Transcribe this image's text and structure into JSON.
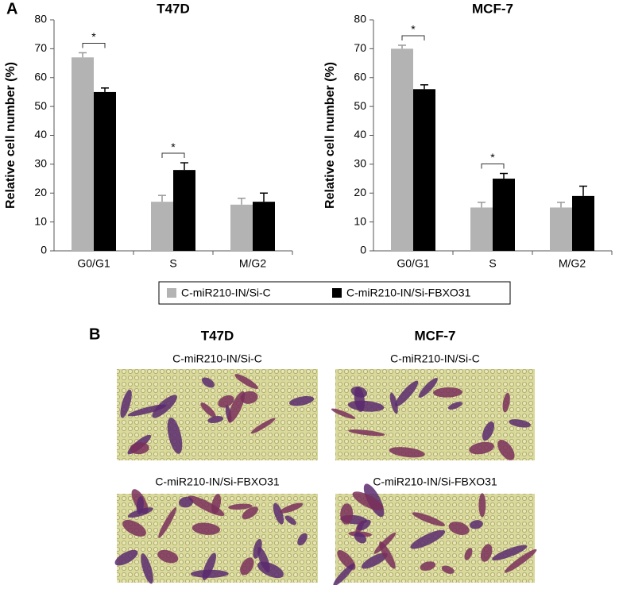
{
  "panel_labels": [
    "A",
    "B"
  ],
  "chart_data": [
    {
      "type": "bar",
      "title": "T47D",
      "y_label": "Relative cell number (%)",
      "categories": [
        "G0/G1",
        "S",
        "M/G2"
      ],
      "series": [
        {
          "name": "C-miR210-IN/Si-C",
          "color": "#b3b3b3",
          "values": [
            67,
            17,
            16
          ],
          "errors": [
            1.6,
            2.2,
            2.2
          ]
        },
        {
          "name": "C-miR210-IN/Si-FBXO31",
          "color": "#000000",
          "values": [
            55,
            28,
            17
          ],
          "errors": [
            1.4,
            2.5,
            3
          ]
        }
      ],
      "ylim": [
        0,
        80
      ],
      "yticks": [
        0,
        10,
        20,
        30,
        40,
        50,
        60,
        70,
        80
      ],
      "annotations": [
        {
          "category": "G0/G1",
          "text": "*"
        },
        {
          "category": "S",
          "text": "*"
        }
      ]
    },
    {
      "type": "bar",
      "title": "MCF-7",
      "y_label": "Relative cell number (%)",
      "categories": [
        "G0/G1",
        "S",
        "M/G2"
      ],
      "series": [
        {
          "color": "#b3b3b3",
          "values": [
            70,
            15,
            15
          ],
          "errors": [
            1.2,
            1.8,
            1.8
          ]
        },
        {
          "color": "#000000",
          "values": [
            56,
            25,
            19
          ],
          "errors": [
            1.5,
            1.8,
            3.4
          ]
        }
      ],
      "ylim": [
        0,
        80
      ],
      "yticks": [
        0,
        10,
        20,
        30,
        40,
        50,
        60,
        70,
        80
      ],
      "annotations": [
        {
          "category": "G0/G1",
          "text": "*"
        },
        {
          "category": "S",
          "text": "*"
        }
      ]
    }
  ],
  "images": {
    "columns": [
      "T47D",
      "MCF-7"
    ],
    "rows": [
      "C-miR210-IN/Si-C",
      "C-miR210-IN/Si-FBXO31",
      "C-miR210-IN/Si-C",
      "C-miR210-IN/Si-FBXO31"
    ]
  }
}
